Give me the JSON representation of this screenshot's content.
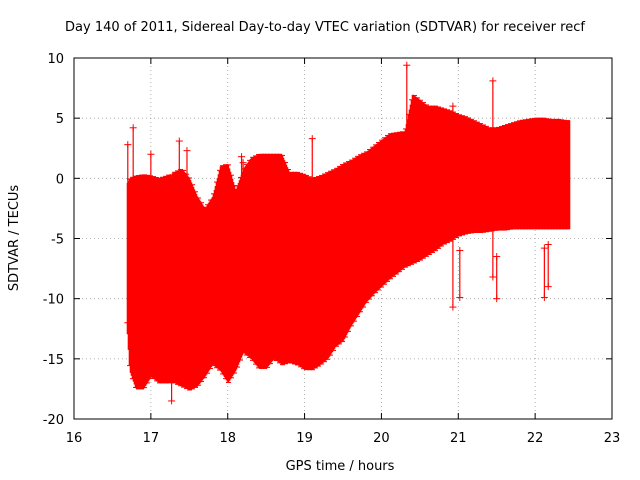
{
  "chart_data": {
    "type": "scatter",
    "title": "Day 140 of 2011, Sidereal Day-to-day VTEC variation (SDTVAR) for receiver recf",
    "xlabel": "GPS time / hours",
    "ylabel": "SDTVAR / TECUs",
    "xlim": [
      16,
      23
    ],
    "ylim": [
      -20,
      10
    ],
    "x_ticks": [
      16,
      17,
      18,
      19,
      20,
      21,
      22,
      23
    ],
    "y_ticks": [
      -20,
      -15,
      -10,
      -5,
      0,
      5,
      10
    ],
    "grid": true,
    "marker": "plus",
    "series_color": "#ff0000",
    "series": [
      {
        "name": "SDTVAR",
        "envelope": {
          "x": [
            16.68,
            16.72,
            16.8,
            16.9,
            17.0,
            17.1,
            17.2,
            17.3,
            17.4,
            17.5,
            17.6,
            17.7,
            17.8,
            17.9,
            18.0,
            18.1,
            18.2,
            18.3,
            18.4,
            18.5,
            18.6,
            18.7,
            18.8,
            18.9,
            19.0,
            19.1,
            19.2,
            19.3,
            19.4,
            19.5,
            19.6,
            19.7,
            19.8,
            19.9,
            20.0,
            20.1,
            20.2,
            20.3,
            20.4,
            20.5,
            20.6,
            20.7,
            20.8,
            20.9,
            21.0,
            21.1,
            21.2,
            21.3,
            21.4,
            21.5,
            21.6,
            21.7,
            21.8,
            21.9,
            22.0,
            22.1,
            22.2,
            22.3,
            22.4,
            22.45
          ],
          "upper": [
            -0.5,
            0.0,
            0.2,
            0.3,
            0.2,
            0.0,
            0.2,
            0.5,
            0.8,
            0.0,
            -1.5,
            -2.5,
            -1.5,
            1.0,
            1.2,
            -1.0,
            0.8,
            1.7,
            2.0,
            2.0,
            2.0,
            2.0,
            0.5,
            0.5,
            0.3,
            0.0,
            0.2,
            0.5,
            0.8,
            1.2,
            1.5,
            1.9,
            2.2,
            2.7,
            3.2,
            3.7,
            3.8,
            3.9,
            7.0,
            6.5,
            6.0,
            6.0,
            5.8,
            5.6,
            5.3,
            5.1,
            4.8,
            4.5,
            4.2,
            4.2,
            4.4,
            4.6,
            4.8,
            4.9,
            5.0,
            5.0,
            4.9,
            4.9,
            4.8,
            4.8
          ],
          "lower": [
            -12.0,
            -16.0,
            -17.5,
            -17.5,
            -16.5,
            -17.0,
            -17.0,
            -17.0,
            -17.3,
            -17.6,
            -17.3,
            -16.5,
            -15.5,
            -16.0,
            -17.0,
            -16.0,
            -14.5,
            -15.0,
            -15.8,
            -15.8,
            -15.0,
            -15.5,
            -15.3,
            -15.5,
            -15.9,
            -15.9,
            -15.5,
            -15.0,
            -14.0,
            -13.5,
            -12.3,
            -11.3,
            -10.3,
            -9.6,
            -9.0,
            -8.4,
            -7.9,
            -7.4,
            -7.1,
            -6.8,
            -6.4,
            -6.0,
            -5.5,
            -5.2,
            -4.8,
            -4.6,
            -4.5,
            -4.5,
            -4.4,
            -4.3,
            -4.3,
            -4.2,
            -4.2,
            -4.2,
            -4.2,
            -4.2,
            -4.2,
            -4.2,
            -4.2,
            -4.2
          ]
        },
        "spikes": [
          {
            "x": 16.7,
            "low": -12.0,
            "high": 2.8
          },
          {
            "x": 16.77,
            "low": -10.0,
            "high": 4.2
          },
          {
            "x": 17.0,
            "low": -15.0,
            "high": 2.0
          },
          {
            "x": 17.27,
            "low": -18.5,
            "high": 0.0
          },
          {
            "x": 17.37,
            "low": -4.0,
            "high": 3.1
          },
          {
            "x": 17.47,
            "low": -1.0,
            "high": 2.3
          },
          {
            "x": 18.18,
            "low": -3.0,
            "high": 1.8
          },
          {
            "x": 18.2,
            "low": -3.0,
            "high": 1.3
          },
          {
            "x": 19.1,
            "low": -3.0,
            "high": 3.3
          },
          {
            "x": 20.33,
            "low": 2.0,
            "high": 9.4
          },
          {
            "x": 20.93,
            "low": -10.7,
            "high": 6.0
          },
          {
            "x": 21.02,
            "low": -9.9,
            "high": -6.0
          },
          {
            "x": 21.45,
            "low": -8.2,
            "high": 8.1
          },
          {
            "x": 21.5,
            "low": -10.0,
            "high": -6.5
          },
          {
            "x": 22.12,
            "low": -9.9,
            "high": -5.8
          },
          {
            "x": 22.17,
            "low": -9.0,
            "high": -5.5
          }
        ],
        "gaps": [
          17.25,
          17.27
        ]
      }
    ]
  }
}
